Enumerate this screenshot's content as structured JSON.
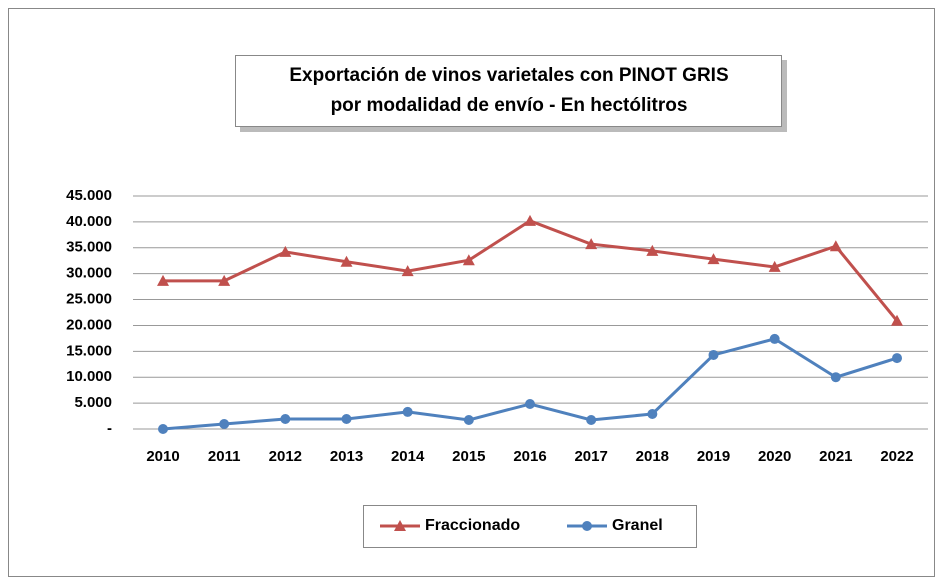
{
  "chart_data": {
    "type": "line",
    "title": [
      "Exportación de vinos varietales con PINOT GRIS",
      "por modalidad de envío - En hectólitros"
    ],
    "categories": [
      "2010",
      "2011",
      "2012",
      "2013",
      "2014",
      "2015",
      "2016",
      "2017",
      "2018",
      "2019",
      "2020",
      "2021",
      "2022"
    ],
    "series": [
      {
        "name": "Fraccionado",
        "color": "#c0504d",
        "marker": "triangle",
        "values": [
          28600,
          28600,
          34200,
          32300,
          30500,
          32600,
          40200,
          35700,
          34400,
          32800,
          31300,
          35300,
          20900
        ]
      },
      {
        "name": "Granel",
        "color": "#4f81bd",
        "marker": "circle",
        "values": [
          0,
          970,
          1930,
          1930,
          3300,
          1740,
          4830,
          1740,
          2900,
          14300,
          17400,
          10000,
          13700
        ]
      }
    ],
    "ylim": [
      0,
      45000
    ],
    "yticks": [
      {
        "value": 0,
        "label": "-"
      },
      {
        "value": 5000,
        "label": "5.000"
      },
      {
        "value": 10000,
        "label": "10.000"
      },
      {
        "value": 15000,
        "label": "15.000"
      },
      {
        "value": 20000,
        "label": "20.000"
      },
      {
        "value": 25000,
        "label": "25.000"
      },
      {
        "value": 30000,
        "label": "30.000"
      },
      {
        "value": 35000,
        "label": "35.000"
      },
      {
        "value": 40000,
        "label": "40.000"
      },
      {
        "value": 45000,
        "label": "45.000"
      }
    ],
    "grid": true,
    "legend": "bottom"
  }
}
